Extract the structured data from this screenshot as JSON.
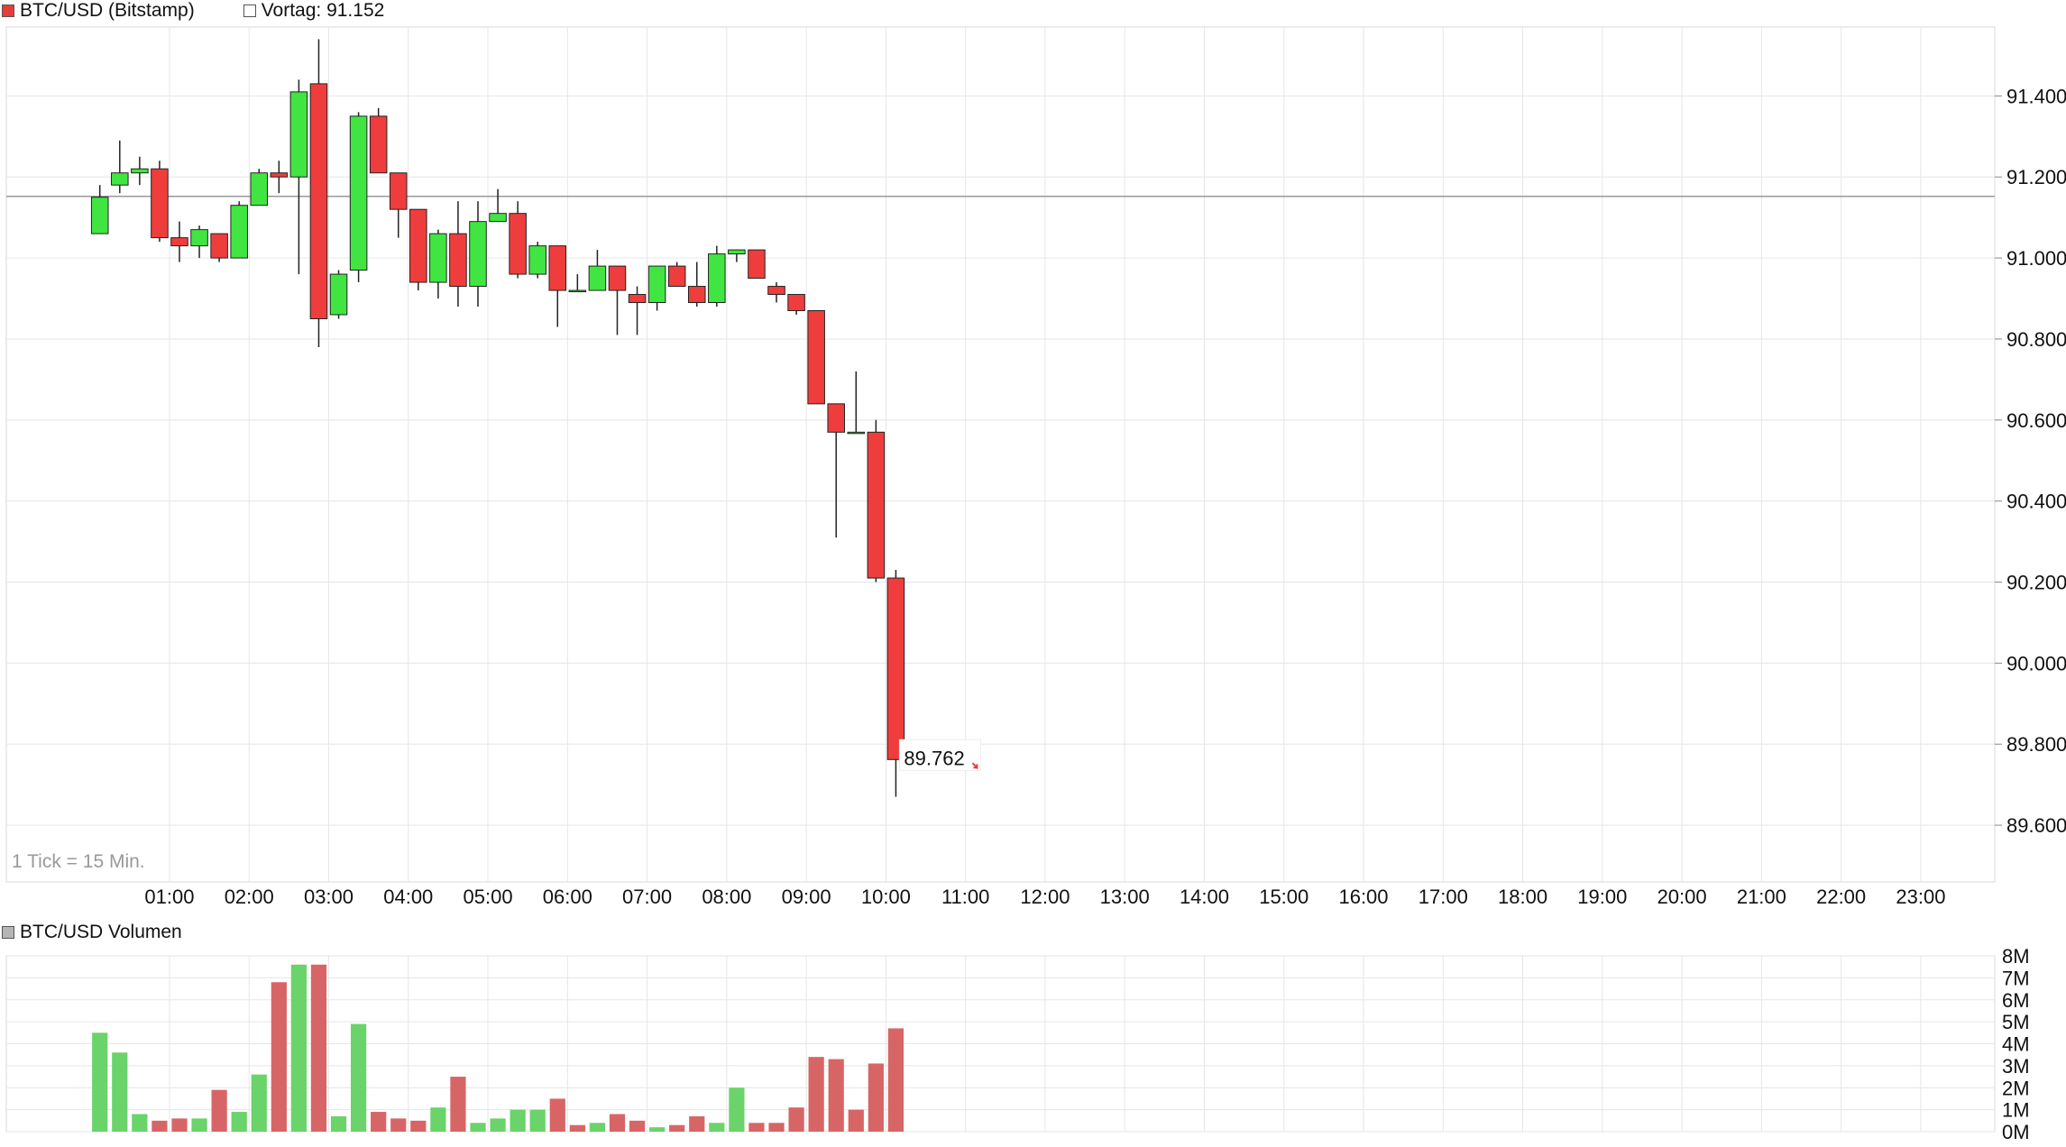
{
  "header": {
    "series_label": "BTC/USD (Bitstamp)",
    "prev_label": "Vortag: 91.152",
    "series_color": "#e83c3c"
  },
  "tick_note": "1 Tick = 15 Min.",
  "volume_header": {
    "label": "BTC/USD Volumen",
    "swatch_color": "#b5b5b5"
  },
  "last_price_label": "89.762",
  "colors": {
    "up": "#41e541",
    "down": "#ef3d3d",
    "vol_up": "#6ad36a",
    "vol_down": "#d86565",
    "grid": "#e6e6e6",
    "prev_line": "#999999"
  },
  "chart_data": [
    {
      "type": "candlestick",
      "title": "BTC/USD (Bitstamp)",
      "x_tick_labels": [
        "01:00",
        "02:00",
        "03:00",
        "04:00",
        "05:00",
        "06:00",
        "07:00",
        "08:00",
        "09:00",
        "10:00",
        "11:00",
        "12:00",
        "13:00",
        "14:00",
        "15:00",
        "16:00",
        "17:00",
        "18:00",
        "19:00",
        "20:00",
        "21:00",
        "22:00",
        "23:00"
      ],
      "y_tick_values": [
        89600,
        89800,
        90000,
        90200,
        90400,
        90600,
        90800,
        91000,
        91200,
        91400
      ],
      "y_tick_labels": [
        "89.600",
        "89.800",
        "90.000",
        "90.200",
        "90.400",
        "90.600",
        "90.800",
        "91.000",
        "91.200",
        "91.400"
      ],
      "ylim": [
        89460,
        91570
      ],
      "x_range_hours": [
        -1.05,
        23.93
      ],
      "prev_close": 91152,
      "candle_interval_minutes": 15,
      "candles": [
        {
          "t": "00:00",
          "o": 91060,
          "h": 91180,
          "l": 91060,
          "c": 91150
        },
        {
          "t": "00:15",
          "o": 91180,
          "h": 91290,
          "l": 91160,
          "c": 91210
        },
        {
          "t": "00:30",
          "o": 91210,
          "h": 91250,
          "l": 91180,
          "c": 91220
        },
        {
          "t": "00:45",
          "o": 91220,
          "h": 91240,
          "l": 91040,
          "c": 91050
        },
        {
          "t": "01:00",
          "o": 91050,
          "h": 91090,
          "l": 90990,
          "c": 91030
        },
        {
          "t": "01:15",
          "o": 91030,
          "h": 91080,
          "l": 91000,
          "c": 91070
        },
        {
          "t": "01:30",
          "o": 91060,
          "h": 91060,
          "l": 90990,
          "c": 91000
        },
        {
          "t": "01:45",
          "o": 91000,
          "h": 91140,
          "l": 91000,
          "c": 91130
        },
        {
          "t": "02:00",
          "o": 91130,
          "h": 91220,
          "l": 91130,
          "c": 91210
        },
        {
          "t": "02:15",
          "o": 91210,
          "h": 91240,
          "l": 91160,
          "c": 91200
        },
        {
          "t": "02:30",
          "o": 91200,
          "h": 91440,
          "l": 90960,
          "c": 91410
        },
        {
          "t": "02:45",
          "o": 91430,
          "h": 91540,
          "l": 90780,
          "c": 90850
        },
        {
          "t": "03:00",
          "o": 90860,
          "h": 90970,
          "l": 90850,
          "c": 90960
        },
        {
          "t": "03:15",
          "o": 90970,
          "h": 91360,
          "l": 90940,
          "c": 91350
        },
        {
          "t": "03:30",
          "o": 91350,
          "h": 91370,
          "l": 91210,
          "c": 91210
        },
        {
          "t": "03:45",
          "o": 91210,
          "h": 91210,
          "l": 91050,
          "c": 91120
        },
        {
          "t": "04:00",
          "o": 91120,
          "h": 91120,
          "l": 90920,
          "c": 90940
        },
        {
          "t": "04:15",
          "o": 90940,
          "h": 91070,
          "l": 90900,
          "c": 91060
        },
        {
          "t": "04:30",
          "o": 91060,
          "h": 91140,
          "l": 90880,
          "c": 90930
        },
        {
          "t": "04:45",
          "o": 90930,
          "h": 91140,
          "l": 90880,
          "c": 91090
        },
        {
          "t": "05:00",
          "o": 91090,
          "h": 91170,
          "l": 91090,
          "c": 91110
        },
        {
          "t": "05:15",
          "o": 91110,
          "h": 91140,
          "l": 90950,
          "c": 90960
        },
        {
          "t": "05:30",
          "o": 90960,
          "h": 91040,
          "l": 90950,
          "c": 91030
        },
        {
          "t": "05:45",
          "o": 91030,
          "h": 91030,
          "l": 90830,
          "c": 90920
        },
        {
          "t": "06:00",
          "o": 90920,
          "h": 90960,
          "l": 90920,
          "c": 90920
        },
        {
          "t": "06:15",
          "o": 90920,
          "h": 91020,
          "l": 90920,
          "c": 90980
        },
        {
          "t": "06:30",
          "o": 90980,
          "h": 90980,
          "l": 90810,
          "c": 90920
        },
        {
          "t": "06:45",
          "o": 90910,
          "h": 90930,
          "l": 90810,
          "c": 90890
        },
        {
          "t": "07:00",
          "o": 90890,
          "h": 90980,
          "l": 90870,
          "c": 90980
        },
        {
          "t": "07:15",
          "o": 90980,
          "h": 90990,
          "l": 90930,
          "c": 90930
        },
        {
          "t": "07:30",
          "o": 90930,
          "h": 90990,
          "l": 90880,
          "c": 90890
        },
        {
          "t": "07:45",
          "o": 90890,
          "h": 91030,
          "l": 90880,
          "c": 91010
        },
        {
          "t": "08:00",
          "o": 91010,
          "h": 91020,
          "l": 90990,
          "c": 91020
        },
        {
          "t": "08:15",
          "o": 91020,
          "h": 91020,
          "l": 90950,
          "c": 90950
        },
        {
          "t": "08:30",
          "o": 90930,
          "h": 90940,
          "l": 90890,
          "c": 90910
        },
        {
          "t": "08:45",
          "o": 90910,
          "h": 90910,
          "l": 90860,
          "c": 90870
        },
        {
          "t": "09:00",
          "o": 90870,
          "h": 90870,
          "l": 90640,
          "c": 90640
        },
        {
          "t": "09:15",
          "o": 90640,
          "h": 90640,
          "l": 90310,
          "c": 90570
        },
        {
          "t": "09:30",
          "o": 90570,
          "h": 90720,
          "l": 90570,
          "c": 90570
        },
        {
          "t": "09:45",
          "o": 90570,
          "h": 90600,
          "l": 90200,
          "c": 90210
        },
        {
          "t": "10:00",
          "o": 90210,
          "h": 90230,
          "l": 89670,
          "c": 89762
        }
      ]
    },
    {
      "type": "bar",
      "title": "BTC/USD Volumen",
      "y_tick_values": [
        0,
        1,
        2,
        3,
        4,
        5,
        6,
        7,
        8
      ],
      "y_tick_labels": [
        "0M",
        "1M",
        "2M",
        "3M",
        "4M",
        "5M",
        "6M",
        "7M",
        "8M"
      ],
      "ylim": [
        0,
        8
      ],
      "unit": "M",
      "values": [
        4.5,
        3.6,
        0.8,
        0.5,
        0.6,
        0.6,
        1.9,
        0.9,
        2.6,
        6.8,
        7.6,
        7.6,
        0.7,
        4.9,
        0.9,
        0.6,
        0.5,
        1.1,
        2.5,
        0.4,
        0.6,
        1.0,
        1.0,
        1.5,
        0.3,
        0.4,
        0.8,
        0.5,
        0.2,
        0.3,
        0.7,
        0.4,
        2.0,
        0.4,
        0.4,
        1.1,
        3.4,
        3.3,
        1.0,
        3.1,
        4.7
      ],
      "directions": [
        "up",
        "up",
        "up",
        "down",
        "down",
        "up",
        "down",
        "up",
        "up",
        "down",
        "up",
        "down",
        "up",
        "up",
        "down",
        "down",
        "down",
        "up",
        "down",
        "up",
        "up",
        "up",
        "up",
        "down",
        "down",
        "up",
        "down",
        "down",
        "up",
        "down",
        "down",
        "up",
        "up",
        "down",
        "down",
        "down",
        "down",
        "down",
        "down",
        "down",
        "down"
      ]
    }
  ]
}
